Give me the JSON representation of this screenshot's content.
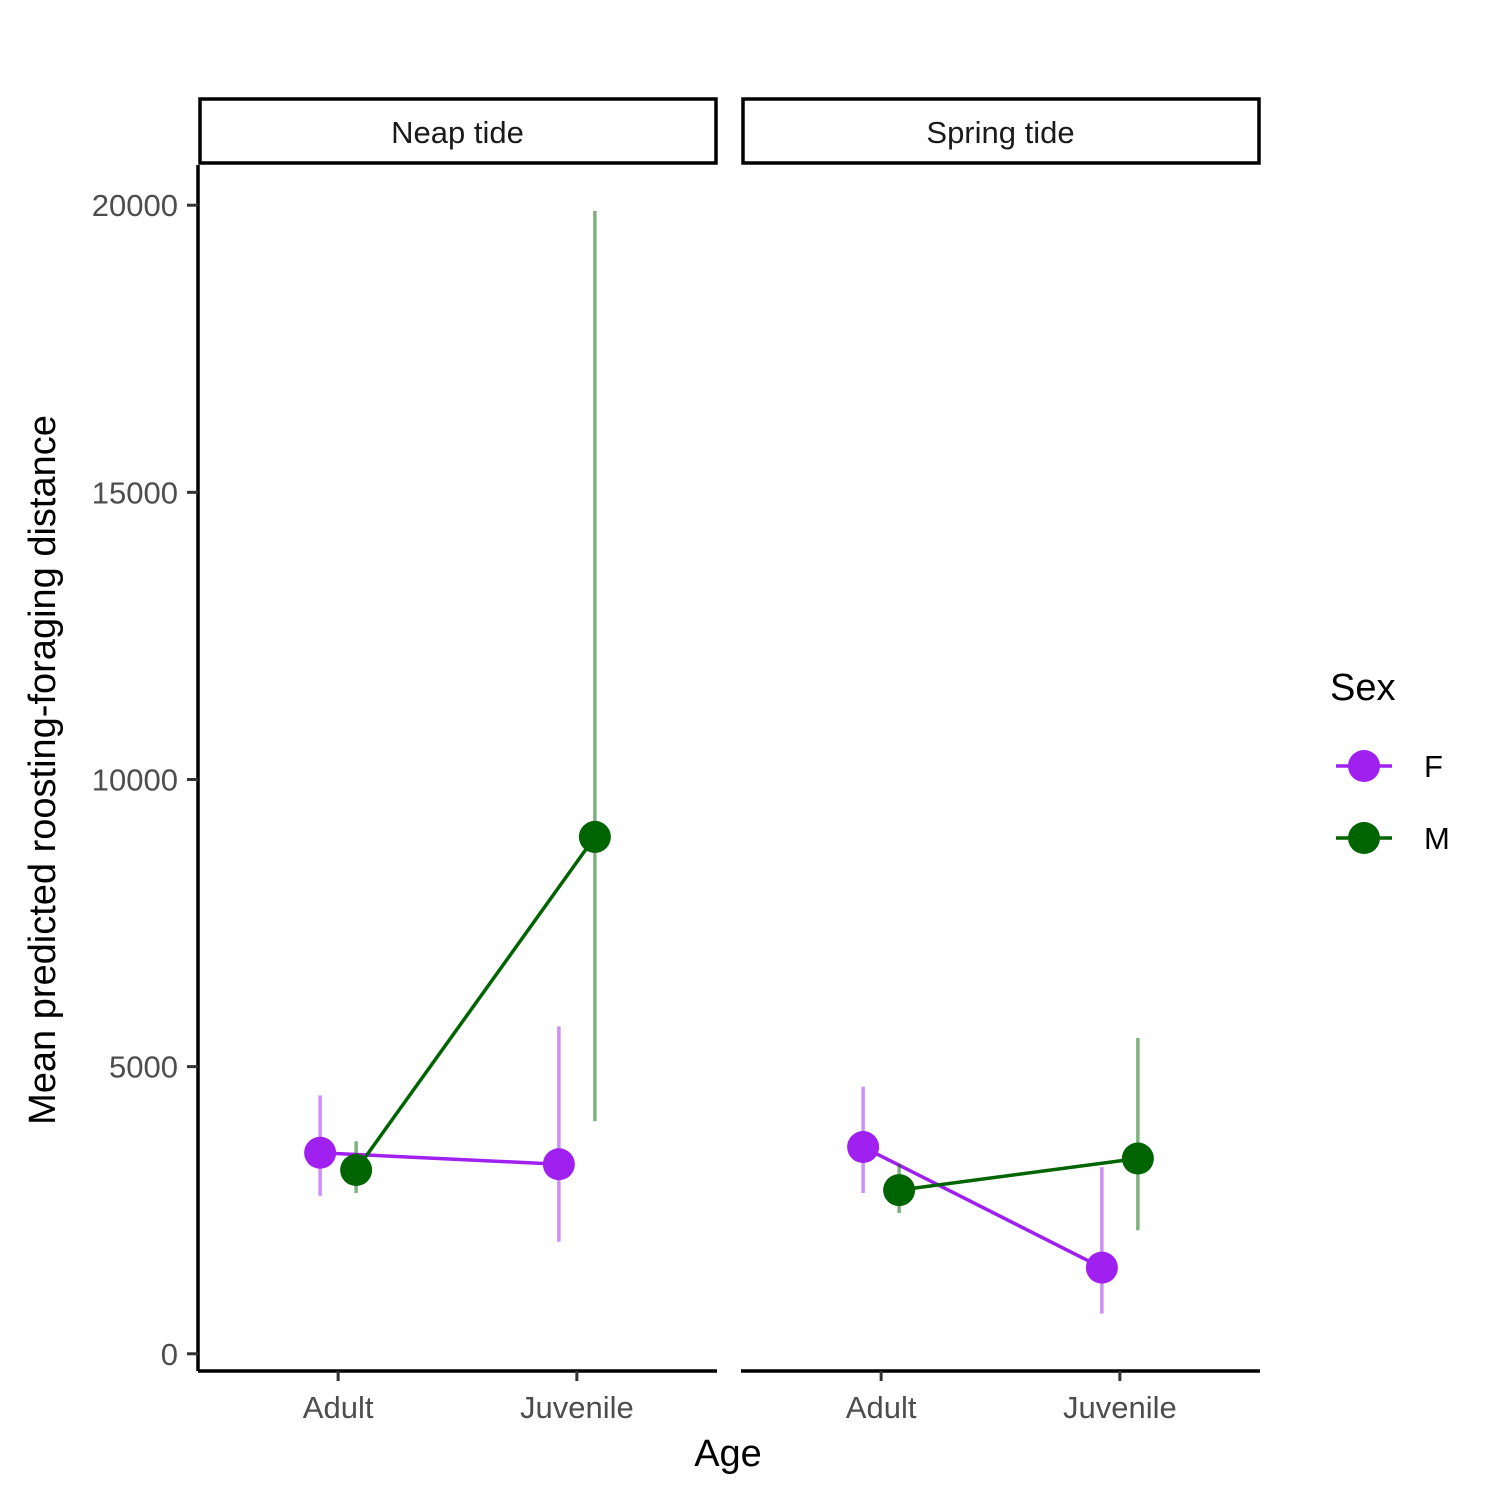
{
  "chart_data": {
    "type": "line",
    "facet_by": "tide",
    "xlabel": "Age",
    "ylabel": "Mean predicted roosting-foraging distance",
    "ylim": [
      -300,
      20700
    ],
    "yticks": [
      0,
      5000,
      10000,
      15000,
      20000
    ],
    "categories": [
      "Adult",
      "Juvenile"
    ],
    "grid": false,
    "legend": {
      "title": "Sex",
      "position": "right",
      "entries": [
        {
          "label": "F",
          "color": "#A020F0"
        },
        {
          "label": "M",
          "color": "#006400"
        }
      ]
    },
    "panels": [
      {
        "title": "Neap tide",
        "series": [
          {
            "name": "F",
            "color": "#A020F0",
            "points": [
              {
                "x": "Adult",
                "y": 3500,
                "lower": 2750,
                "upper": 4500
              },
              {
                "x": "Juvenile",
                "y": 3300,
                "lower": 1950,
                "upper": 5700
              }
            ]
          },
          {
            "name": "M",
            "color": "#006400",
            "points": [
              {
                "x": "Adult",
                "y": 3200,
                "lower": 2800,
                "upper": 3700
              },
              {
                "x": "Juvenile",
                "y": 9000,
                "lower": 4050,
                "upper": 19900
              }
            ]
          }
        ]
      },
      {
        "title": "Spring tide",
        "series": [
          {
            "name": "F",
            "color": "#A020F0",
            "points": [
              {
                "x": "Adult",
                "y": 3600,
                "lower": 2800,
                "upper": 4650
              },
              {
                "x": "Juvenile",
                "y": 1500,
                "lower": 700,
                "upper": 3250
              }
            ]
          },
          {
            "name": "M",
            "color": "#006400",
            "points": [
              {
                "x": "Adult",
                "y": 2850,
                "lower": 2450,
                "upper": 3300
              },
              {
                "x": "Juvenile",
                "y": 3400,
                "lower": 2150,
                "upper": 5500
              }
            ]
          }
        ]
      }
    ]
  }
}
